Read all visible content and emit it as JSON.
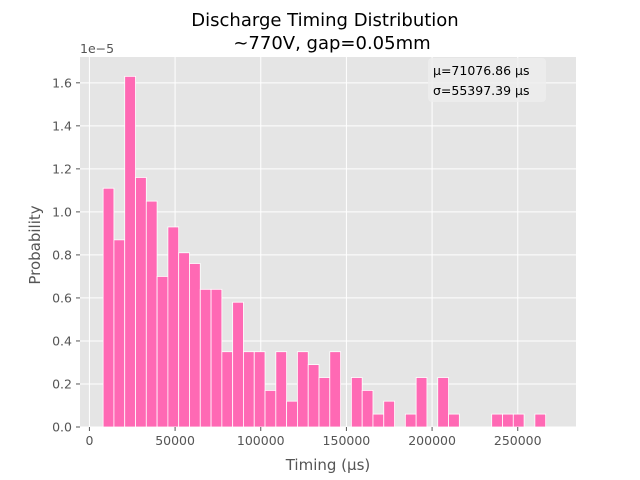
{
  "chart_data": {
    "type": "bar",
    "title": "Discharge Timing Distribution",
    "subtitle": "~770V, gap=0.05mm",
    "xlabel": "Timing (μs)",
    "ylabel": "Probability",
    "y_offset_label": "1e−5",
    "xlim": [
      -5500,
      284000
    ],
    "ylim": [
      0,
      1.72
    ],
    "xticks": [
      0,
      50000,
      100000,
      150000,
      200000,
      250000
    ],
    "xtick_labels": [
      "0",
      "50000",
      "100000",
      "150000",
      "200000",
      "250000"
    ],
    "yticks": [
      0.0,
      0.2,
      0.4,
      0.6,
      0.8,
      1.0,
      1.2,
      1.4,
      1.6
    ],
    "ytick_labels": [
      "0.0",
      "0.2",
      "0.4",
      "0.6",
      "0.8",
      "1.0",
      "1.2",
      "1.4",
      "1.6"
    ],
    "grid": true,
    "bar_color": "#ff69b4",
    "background_color": "#e5e5e5",
    "bin_start": 8000,
    "bin_width": 6300,
    "values": [
      1.11,
      0.87,
      1.63,
      1.16,
      1.05,
      0.7,
      0.93,
      0.81,
      0.76,
      0.64,
      0.64,
      0.35,
      0.58,
      0.35,
      0.35,
      0.17,
      0.35,
      0.12,
      0.35,
      0.29,
      0.23,
      0.35,
      0.0,
      0.23,
      0.17,
      0.06,
      0.12,
      0.0,
      0.06,
      0.23,
      0.0,
      0.23,
      0.06,
      0.0,
      0.0,
      0.0,
      0.06,
      0.06,
      0.06,
      0.0,
      0.06
    ],
    "stats": {
      "mu_line": "μ=71076.86 μs",
      "sigma_line": "σ=55397.39 μs"
    }
  }
}
